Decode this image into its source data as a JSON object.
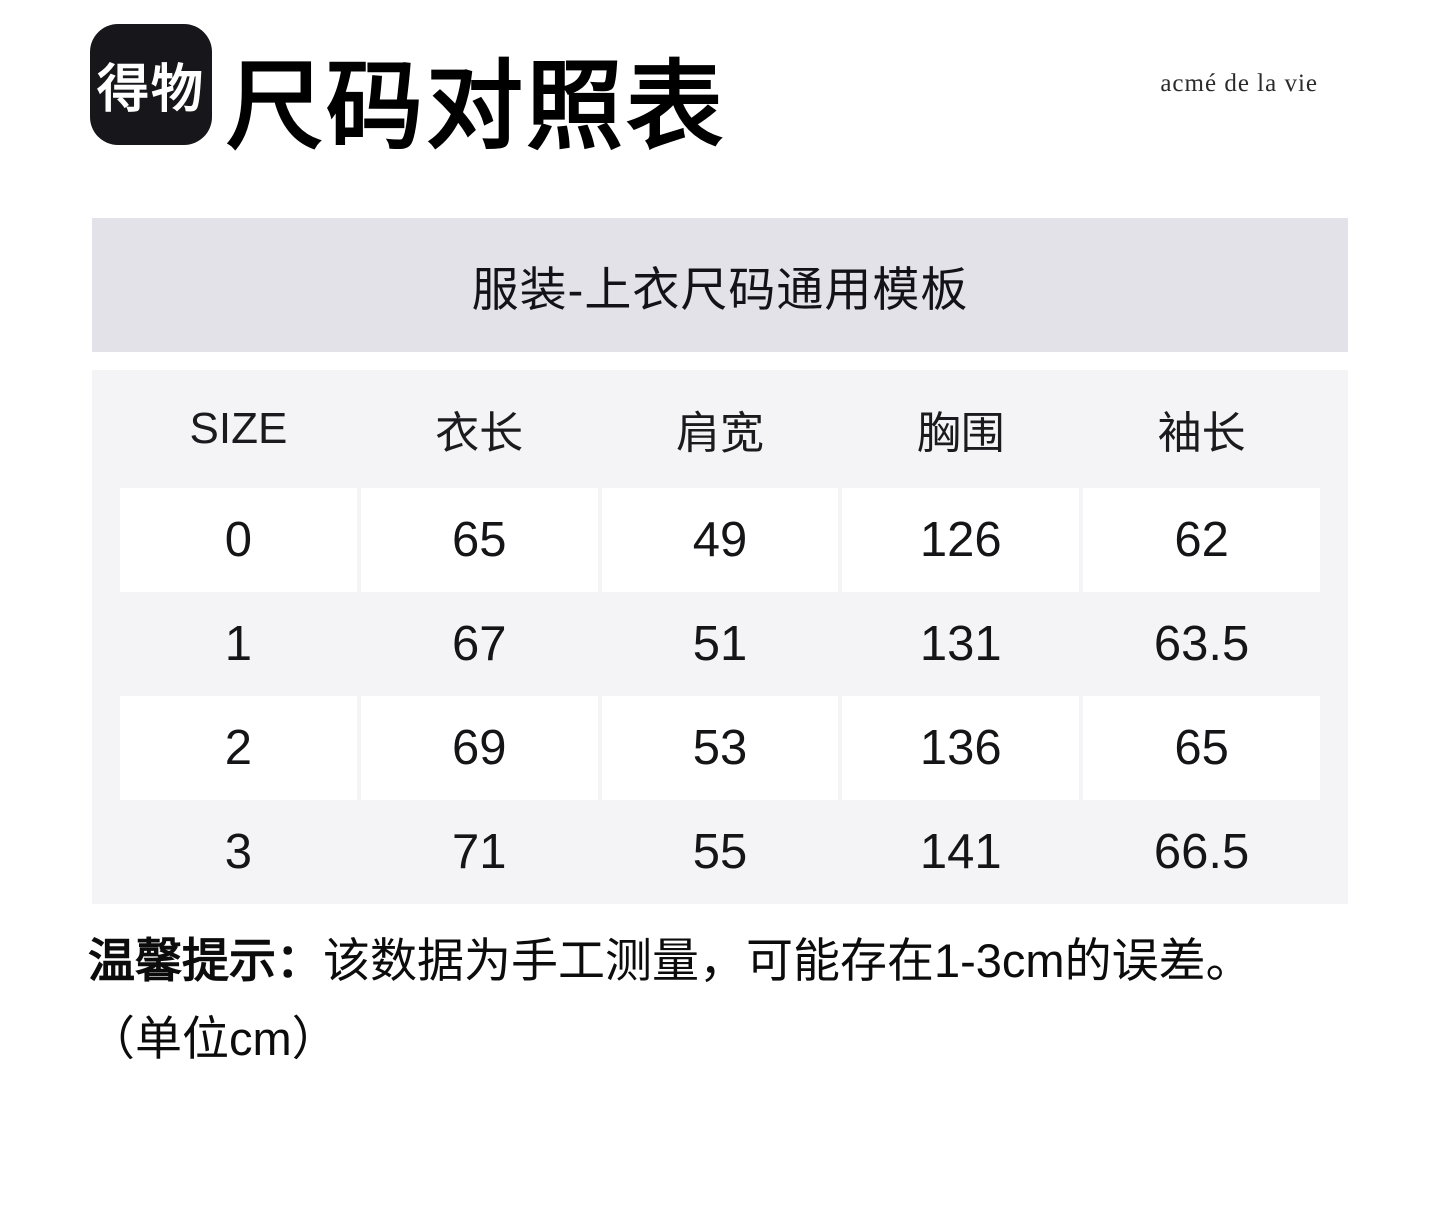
{
  "header": {
    "logo_text": "得物",
    "page_title": "尺码对照表",
    "brand": "acmé de la vie"
  },
  "banner": {
    "title": "服装-上衣尺码通用模板"
  },
  "size_table": {
    "columns": [
      "SIZE",
      "衣长",
      "肩宽",
      "胸围",
      "袖长"
    ],
    "rows": [
      [
        "0",
        "65",
        "49",
        "126",
        "62"
      ],
      [
        "1",
        "67",
        "51",
        "131",
        "63.5"
      ],
      [
        "2",
        "69",
        "53",
        "136",
        "65"
      ],
      [
        "3",
        "71",
        "55",
        "141",
        "66.5"
      ]
    ]
  },
  "note": {
    "label": "温馨提示：",
    "line1": "该数据为手工测量，可能存在1-3cm的误差。",
    "line2": "（单位cm）"
  },
  "colors": {
    "banner_bg": "#e2e2e8",
    "table_bg": "#f4f4f7",
    "cell_bg": "#ffffff",
    "logo_bg": "#17171b",
    "text": "#111111"
  }
}
